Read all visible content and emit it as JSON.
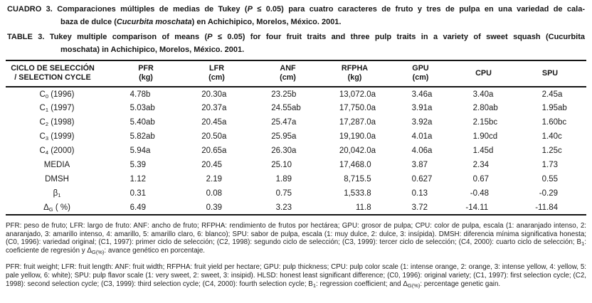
{
  "captions": {
    "es": {
      "line1": "CUADRO 3. Comparaciones múltiples de medias de Tukey (*P* ≤ 0.05) para cuatro caracteres de fruto y tres de pulpa en una variedad de cala-",
      "line2": "baza de dulce (*Cucurbita moschata*) en Achichipico, Morelos, México. 2001."
    },
    "en": {
      "line1": "TABLE 3. Tukey multiple comparison of means (*P* ≤ 0.05) for four fruit traits and three pulp traits in a variety of sweet squash (Cucurbita",
      "line2": "moschata) in Achichipico, Morelos, México. 2001."
    }
  },
  "table": {
    "columns": [
      {
        "id": "cycle",
        "line1": "CICLO DE SELECCIÓN",
        "line2": "/ SELECTION CYCLE"
      },
      {
        "id": "pfr",
        "line1": "PFR",
        "line2": "(kg)"
      },
      {
        "id": "lfr",
        "line1": "LFR",
        "line2": "(cm)"
      },
      {
        "id": "anf",
        "line1": "ANF",
        "line2": "(cm)"
      },
      {
        "id": "rfpha",
        "line1": "RFPHA",
        "line2": "(kg)"
      },
      {
        "id": "gpu",
        "line1": "GPU",
        "line2": "(cm)"
      },
      {
        "id": "cpu",
        "line1": "CPU",
        "line2": ""
      },
      {
        "id": "spu",
        "line1": "SPU",
        "line2": ""
      }
    ],
    "rows": [
      {
        "label": "C~0~ (1996)",
        "values": [
          "4.78b",
          "20.30a",
          "23.25b",
          "13,072.0a",
          "3.46a",
          "3.40a",
          "2.45a"
        ]
      },
      {
        "label": "C~1~ (1997)",
        "values": [
          "5.03ab",
          "20.37a",
          "24.55ab",
          "17,750.0a",
          "3.91a",
          "2.80ab",
          "1.95ab"
        ]
      },
      {
        "label": "C~2~ (1998)",
        "values": [
          "5.40ab",
          "20.45a",
          "25.47a",
          "17,287.0a",
          "3.92a",
          "2.15bc",
          "1.60bc"
        ]
      },
      {
        "label": "C~3~ (1999)",
        "values": [
          "5.82ab",
          "20.50a",
          "25.95a",
          "19,190.0a",
          "4.01a",
          "1.90cd",
          "1.40c"
        ]
      },
      {
        "label": "C~4~ (2000)",
        "values": [
          "5.94a",
          "20.65a",
          "26.30a",
          "20,042.0a",
          "4.06a",
          "1.45d",
          "1.25c"
        ]
      },
      {
        "label": "MEDIA",
        "values": [
          "5.39",
          "20.45",
          "25.10",
          "17,468.0",
          "3.87",
          "2.34",
          "1.73"
        ]
      },
      {
        "label": "DMSH",
        "values": [
          "1.12",
          "2.19",
          "1.89",
          "8,715.5",
          "0.627",
          "0.67",
          "0.55"
        ]
      },
      {
        "label": "β~1~",
        "values": [
          "0.31",
          "0.08",
          "0.75",
          "1,533.8",
          "0.13",
          "-0.48",
          "-0.29"
        ]
      },
      {
        "label": "Δ~G~ ( %)",
        "values": [
          "6.49",
          "0.39",
          "3.23",
          "11.8",
          "3.72",
          "-14.11",
          "-11.84"
        ]
      }
    ]
  },
  "footnotes": {
    "es": "PFR: peso de fruto; LFR: largo de fruto: ANF: ancho de fruto; RFPHA: rendimiento de frutos por hectárea; GPU: grosor de pulpa; CPU: color de pulpa, escala (1: anaranjado intenso, 2: anaranjado, 3: amarillo intenso, 4: amarillo, 5: amarillo claro, 6: blanco); SPU: sabor de pulpa, escala (1: muy dulce, 2: dulce, 3: insípida). DMSH: diferencia mínima significativa honesta; (C0, 1996): variedad original; (C1, 1997): primer ciclo de selección; (C2, 1998): segundo ciclo de selección; (C3, 1999): tercer ciclo de selección; (C4, 2000): cuarto ciclo de selección; B~1~: coeficiente de regresión y Δ~G(%)~: avance genético en porcentaje.",
    "en": "PFR: fruit weight; LFR: fruit length: ANF: fruit width; RFPHA: fruit yield per hectare; GPU: pulp thickness; CPU: pulp color scale (1: intense orange, 2: orange, 3: intense yellow, 4: yellow, 5: pale yellow, 6: white); SPU: pulp flavor scale (1: very sweet, 2: sweet, 3: insipid). HLSD: honest least significant difference; (C0, 1996): original variety; (C1, 1997): first selection cycle; (C2, 1998): second selection cycle; (C3, 1999): third selection cycle; (C4, 2000): fourth selection cycle; B~1~: regression coefficient; and Δ~G(%)~: percentage genetic gain."
  }
}
